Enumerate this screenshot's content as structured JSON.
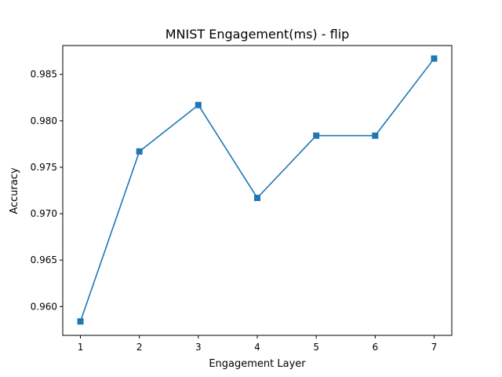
{
  "chart_data": {
    "type": "line",
    "title": "MNIST Engagement(ms) - flip",
    "xlabel": "Engagement Layer",
    "ylabel": "Accuracy",
    "x": [
      1,
      2,
      3,
      4,
      5,
      6,
      7
    ],
    "series": [
      {
        "values": [
          0.9584,
          0.9767,
          0.9817,
          0.9717,
          0.9784,
          0.9784,
          0.9867
        ]
      }
    ],
    "xlim": [
      0.7,
      7.3
    ],
    "ylim": [
      0.9569,
      0.9881
    ],
    "xticks": [
      1,
      2,
      3,
      4,
      5,
      6,
      7
    ],
    "yticks": [
      0.96,
      0.965,
      0.97,
      0.975,
      0.98,
      0.985
    ],
    "ytick_labels": [
      "0.960",
      "0.965",
      "0.970",
      "0.975",
      "0.980",
      "0.985"
    ],
    "marker": "square",
    "line_color": "#1f77b4",
    "grid": false,
    "legend": false
  }
}
